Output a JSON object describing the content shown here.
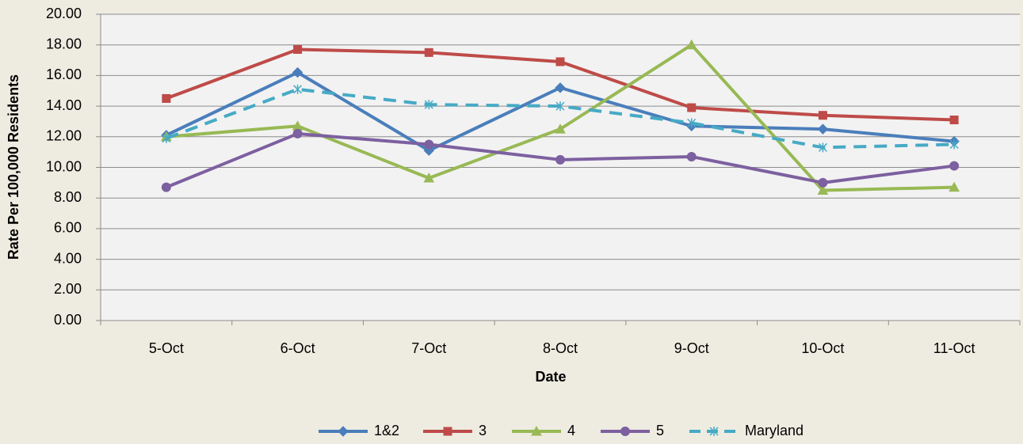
{
  "chart_data": {
    "type": "line",
    "x_label": "Date",
    "y_label": "Rate Per 100,000 Residents",
    "categories": [
      "5-Oct",
      "6-Oct",
      "7-Oct",
      "8-Oct",
      "9-Oct",
      "10-Oct",
      "11-Oct"
    ],
    "series": [
      {
        "name": "1&2",
        "color": "#4a7ebb",
        "marker": "diamond",
        "dashed": false,
        "values": [
          12.1,
          16.2,
          11.1,
          15.2,
          12.7,
          12.5,
          11.7
        ]
      },
      {
        "name": "3",
        "color": "#be4b48",
        "marker": "square",
        "dashed": false,
        "values": [
          14.5,
          17.7,
          17.5,
          16.9,
          13.9,
          13.4,
          13.1
        ]
      },
      {
        "name": "4",
        "color": "#98b954",
        "marker": "triangle",
        "dashed": false,
        "values": [
          12.0,
          12.7,
          9.3,
          12.5,
          18.0,
          8.5,
          8.7
        ]
      },
      {
        "name": "5",
        "color": "#7d60a0",
        "marker": "circle",
        "dashed": false,
        "values": [
          8.7,
          12.2,
          11.5,
          10.5,
          10.7,
          9.0,
          10.1
        ]
      },
      {
        "name": "Maryland",
        "color": "#46aac5",
        "marker": "star",
        "dashed": true,
        "values": [
          11.9,
          15.1,
          14.1,
          14.0,
          12.9,
          11.3,
          11.5
        ]
      }
    ],
    "ylim": [
      0,
      20
    ],
    "yticks": [
      {
        "value": 0,
        "label": "0.00"
      },
      {
        "value": 2,
        "label": "2.00"
      },
      {
        "value": 4,
        "label": "4.00"
      },
      {
        "value": 6,
        "label": "6.00"
      },
      {
        "value": 8,
        "label": "8.00"
      },
      {
        "value": 10,
        "label": "10.00"
      },
      {
        "value": 12,
        "label": "12.00"
      },
      {
        "value": 14,
        "label": "14.00"
      },
      {
        "value": 16,
        "label": "16.00"
      },
      {
        "value": 18,
        "label": "18.00"
      },
      {
        "value": 20,
        "label": "20.00"
      }
    ],
    "grid": true,
    "legend": "bottom"
  }
}
